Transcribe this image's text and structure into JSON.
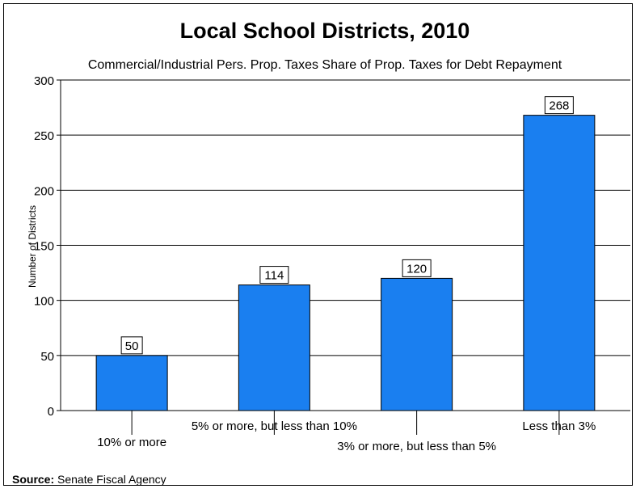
{
  "chart_data": {
    "type": "bar",
    "title": "Local School Districts, 2010",
    "subtitle": "Commercial/Industrial Pers. Prop. Taxes Share of Prop. Taxes for Debt Repayment",
    "ylabel": "Number of Districts",
    "xlabel": "",
    "categories": [
      "10% or more",
      "5% or more, but less than 10%",
      "3% or more, but less than 5%",
      "Less than 3%"
    ],
    "values": [
      50,
      114,
      120,
      268
    ],
    "ylim": [
      0,
      300
    ],
    "yticks": [
      0,
      50,
      100,
      150,
      200,
      250,
      300
    ],
    "grid": true,
    "data_labels": true,
    "bar_color": "#1a7ff0"
  },
  "source": {
    "label": "Source:",
    "text": "Senate Fiscal Agency"
  }
}
